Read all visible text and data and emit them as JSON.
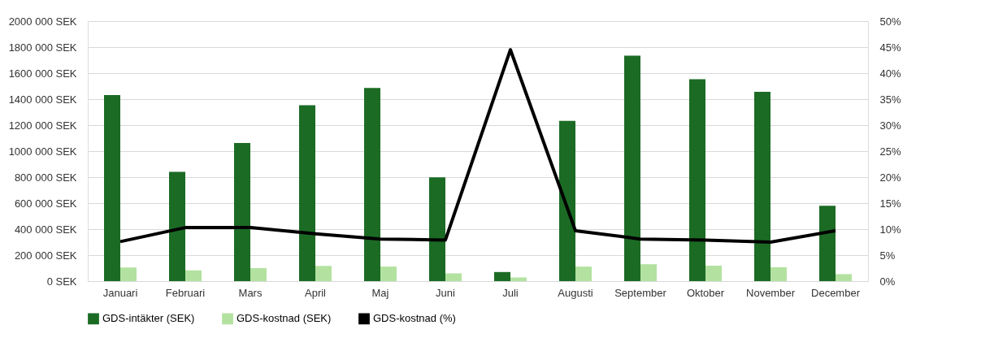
{
  "chart_data": {
    "type": "bar",
    "categories": [
      "Januari",
      "Februari",
      "Mars",
      "April",
      "Maj",
      "Juni",
      "Juli",
      "Augusti",
      "September",
      "Oktober",
      "November",
      "December"
    ],
    "series": [
      {
        "name": "GDS-intäkter (SEK)",
        "color": "#1b6b24",
        "values": [
          1432000,
          840000,
          1063000,
          1353000,
          1486000,
          798000,
          70000,
          1233000,
          1734000,
          1553000,
          1456000,
          580000
        ]
      },
      {
        "name": "GDS-kostnad (SEK)",
        "color": "#b3e2a0",
        "values": [
          105000,
          83000,
          100000,
          117000,
          112000,
          60000,
          28000,
          112000,
          130000,
          119000,
          107000,
          54000
        ]
      },
      {
        "name": "GDS-kostnad (%)",
        "color": "#000000",
        "type": "line",
        "axis": "y2",
        "values": [
          7.6,
          10.3,
          10.3,
          9.1,
          8.1,
          7.9,
          44.5,
          9.7,
          8.1,
          7.9,
          7.5,
          9.7
        ]
      }
    ],
    "ylim": [
      0,
      2000000
    ],
    "yticks": [
      {
        "value": 0,
        "label": "0 SEK"
      },
      {
        "value": 200000,
        "label": "200 000 SEK"
      },
      {
        "value": 400000,
        "label": "400 000 SEK"
      },
      {
        "value": 600000,
        "label": "600 000 SEK"
      },
      {
        "value": 800000,
        "label": "800 000 SEK"
      },
      {
        "value": 1000000,
        "label": "1000 000 SEK"
      },
      {
        "value": 1200000,
        "label": "1200 000 SEK"
      },
      {
        "value": 1400000,
        "label": "1400 000 SEK"
      },
      {
        "value": 1600000,
        "label": "1600 000 SEK"
      },
      {
        "value": 1800000,
        "label": "1800 000 SEK"
      },
      {
        "value": 2000000,
        "label": "2000 000 SEK"
      }
    ],
    "y2lim": [
      0,
      50
    ],
    "y2ticks": [
      {
        "value": 0,
        "label": "0%"
      },
      {
        "value": 5,
        "label": "5%"
      },
      {
        "value": 10,
        "label": "10%"
      },
      {
        "value": 15,
        "label": "15%"
      },
      {
        "value": 20,
        "label": "20%"
      },
      {
        "value": 25,
        "label": "25%"
      },
      {
        "value": 30,
        "label": "30%"
      },
      {
        "value": 35,
        "label": "35%"
      },
      {
        "value": 40,
        "label": "40%"
      },
      {
        "value": 45,
        "label": "45%"
      },
      {
        "value": 50,
        "label": "50%"
      }
    ],
    "grid": "y",
    "legend": "bottom",
    "marker": "none",
    "line_style": "solid"
  }
}
